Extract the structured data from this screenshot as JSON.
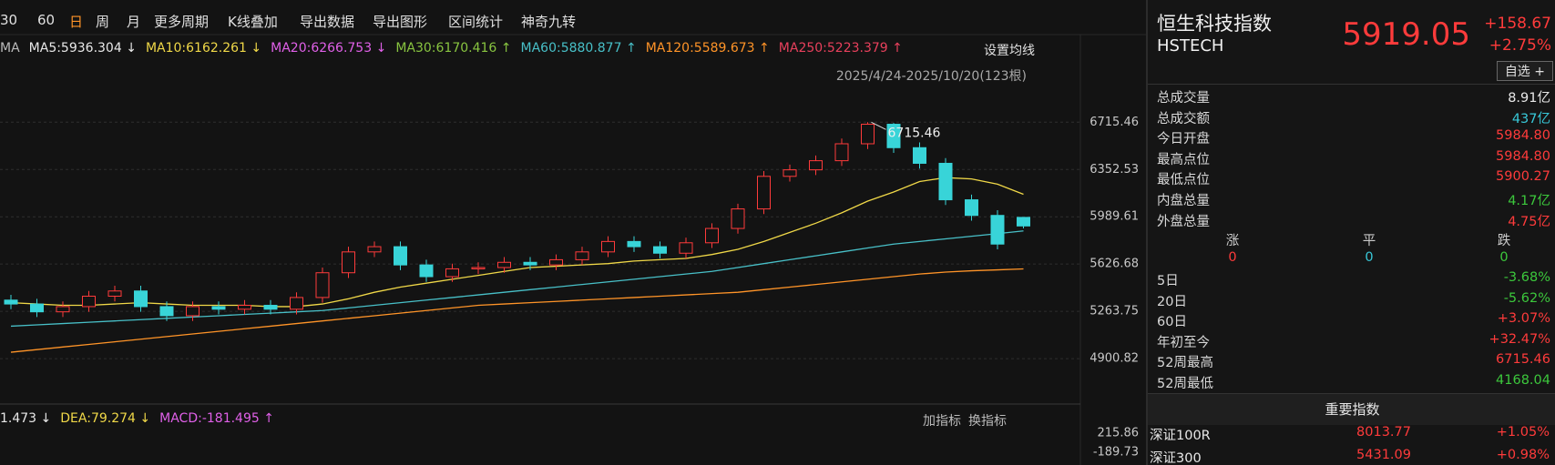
{
  "toolbar": {
    "items": [
      "30",
      "60",
      "日",
      "周",
      "月",
      "更多周期",
      "K线叠加",
      "导出数据",
      "导出图形",
      "区间统计",
      "神奇九转"
    ],
    "active": 2
  },
  "ma_legend": {
    "title": "MA",
    "items": [
      {
        "label": "MA5:5936.304",
        "arrow": "↓",
        "color": "#e8e8e8"
      },
      {
        "label": "MA10:6162.261",
        "arrow": "↓",
        "color": "#f0d848"
      },
      {
        "label": "MA20:6266.753",
        "arrow": "↓",
        "color": "#e060e8"
      },
      {
        "label": "MA30:6170.416",
        "arrow": "↑",
        "color": "#88c440"
      },
      {
        "label": "MA60:5880.877",
        "arrow": "↑",
        "color": "#48c0c8"
      },
      {
        "label": "MA120:5589.673",
        "arrow": "↑",
        "color": "#ff9428"
      },
      {
        "label": "MA250:5223.379",
        "arrow": "↑",
        "color": "#e8405c"
      }
    ],
    "settings": "设置均线",
    "range": "2025/4/24-2025/10/20(123根)"
  },
  "chart_data": {
    "type": "candlestick",
    "up_color": "#ff3b3b",
    "down_color": "#38d4d8",
    "annotation": "6715.46",
    "open": [
      5350,
      5320,
      5260,
      5300,
      5380,
      5420,
      5300,
      5230,
      5300,
      5280,
      5310,
      5280,
      5370,
      5560,
      5720,
      5760,
      5620,
      5530,
      5590,
      5600,
      5640,
      5620,
      5660,
      5720,
      5800,
      5760,
      5710,
      5790,
      5900,
      6050,
      6300,
      6350,
      6420,
      6550,
      6700,
      6520,
      6400,
      6120,
      6000,
      5984.8
    ],
    "high": [
      5390,
      5360,
      5340,
      5420,
      5460,
      5460,
      5340,
      5340,
      5340,
      5350,
      5350,
      5410,
      5600,
      5760,
      5800,
      5800,
      5660,
      5630,
      5640,
      5680,
      5680,
      5700,
      5760,
      5840,
      5840,
      5800,
      5830,
      5940,
      6090,
      6340,
      6390,
      6460,
      6590,
      6715.46,
      6710,
      6560,
      6440,
      6160,
      6040,
      5984.8
    ],
    "low": [
      5280,
      5220,
      5220,
      5260,
      5340,
      5260,
      5190,
      5190,
      5240,
      5240,
      5240,
      5240,
      5330,
      5520,
      5680,
      5580,
      5490,
      5490,
      5550,
      5560,
      5580,
      5580,
      5620,
      5680,
      5720,
      5670,
      5670,
      5750,
      5860,
      6010,
      6260,
      6310,
      6380,
      6510,
      6480,
      6360,
      6080,
      5960,
      5740,
      5900.27
    ],
    "close": [
      5320,
      5260,
      5300,
      5380,
      5420,
      5300,
      5230,
      5300,
      5280,
      5310,
      5280,
      5370,
      5560,
      5720,
      5760,
      5620,
      5530,
      5590,
      5600,
      5640,
      5620,
      5660,
      5720,
      5800,
      5760,
      5710,
      5790,
      5900,
      6050,
      6300,
      6350,
      6420,
      6550,
      6700,
      6520,
      6400,
      6120,
      6000,
      5780,
      5919.05
    ],
    "series": [
      {
        "color": "#f0d848",
        "values": [
          5330,
          5320,
          5310,
          5310,
          5320,
          5330,
          5320,
          5310,
          5310,
          5310,
          5300,
          5300,
          5320,
          5360,
          5410,
          5450,
          5480,
          5510,
          5540,
          5570,
          5600,
          5610,
          5620,
          5630,
          5650,
          5660,
          5670,
          5700,
          5740,
          5800,
          5870,
          5940,
          6020,
          6110,
          6180,
          6260,
          6290,
          6280,
          6240,
          6162.261
        ]
      },
      {
        "color": "#48c0c8",
        "values": [
          5150,
          5160,
          5170,
          5180,
          5190,
          5200,
          5210,
          5220,
          5230,
          5240,
          5250,
          5260,
          5270,
          5290,
          5310,
          5330,
          5350,
          5370,
          5390,
          5410,
          5430,
          5450,
          5470,
          5490,
          5510,
          5530,
          5550,
          5570,
          5600,
          5630,
          5660,
          5690,
          5720,
          5750,
          5780,
          5800,
          5820,
          5840,
          5860,
          5880.877
        ]
      },
      {
        "color": "#ff9428",
        "values": [
          4950,
          4970,
          4990,
          5010,
          5030,
          5050,
          5070,
          5090,
          5110,
          5130,
          5150,
          5170,
          5190,
          5210,
          5230,
          5250,
          5270,
          5290,
          5310,
          5320,
          5330,
          5340,
          5350,
          5360,
          5370,
          5380,
          5390,
          5400,
          5410,
          5430,
          5450,
          5470,
          5490,
          5510,
          5530,
          5550,
          5565,
          5575,
          5582,
          5589.673
        ]
      }
    ],
    "ylim": [
      4650,
      6990
    ],
    "yticks": [
      6715.46,
      6352.53,
      5989.61,
      5626.68,
      5263.75,
      4900.82
    ],
    "grid": true
  },
  "macd_panel": {
    "items": [
      {
        "label": "1.473",
        "arrow": "↓",
        "color": "#e8e8e8"
      },
      {
        "label": "DEA:79.274",
        "arrow": "↓",
        "color": "#f0d848"
      },
      {
        "label": "MACD:-181.495",
        "arrow": "↑",
        "color": "#e060e8"
      }
    ],
    "buttons": [
      "加指标",
      "换指标"
    ],
    "yticks": [
      215.86,
      -189.73
    ]
  },
  "quote": {
    "name": "恒生科技指数",
    "code": "HSTECH",
    "price": "5919.05",
    "change": "+158.67",
    "pct": "+2.75%",
    "button": "自选 +"
  },
  "stats": [
    {
      "label": "总成交量",
      "value": "8.91亿",
      "color": "#e8e8e8"
    },
    {
      "label": "总成交额",
      "value": "437亿",
      "color": "#38c8d8"
    },
    {
      "label": "今日开盘",
      "value": "5984.80",
      "color": "#ff3b3b"
    },
    {
      "label": "最高点位",
      "value": "5984.80",
      "color": "#ff3b3b"
    },
    {
      "label": "最低点位",
      "value": "5900.27",
      "color": "#ff3b3b"
    },
    {
      "label": "内盘总量",
      "value": "4.17亿",
      "color": "#3cc83c"
    },
    {
      "label": "外盘总量",
      "value": "4.75亿",
      "color": "#ff3b3b"
    }
  ],
  "counts": {
    "labels": [
      "涨",
      "平",
      "跌"
    ],
    "values": [
      0,
      0,
      0
    ],
    "colors": [
      "#ff3b3b",
      "#38c8d8",
      "#3cc83c"
    ]
  },
  "periods": [
    {
      "label": "5日",
      "value": "-3.68%",
      "color": "#3cc83c"
    },
    {
      "label": "20日",
      "value": "-5.62%",
      "color": "#3cc83c"
    },
    {
      "label": "60日",
      "value": "+3.07%",
      "color": "#ff3b3b"
    },
    {
      "label": "年初至今",
      "value": "+32.47%",
      "color": "#ff3b3b"
    },
    {
      "label": "52周最高",
      "value": "6715.46",
      "color": "#ff3b3b"
    },
    {
      "label": "52周最低",
      "value": "4168.04",
      "color": "#3cc83c"
    }
  ],
  "indices": {
    "title": "重要指数",
    "rows": [
      {
        "name": "深证100R",
        "value": "8013.77",
        "pct": "+1.05%"
      },
      {
        "name": "深证300",
        "value": "5431.09",
        "pct": "+0.98%"
      }
    ]
  }
}
